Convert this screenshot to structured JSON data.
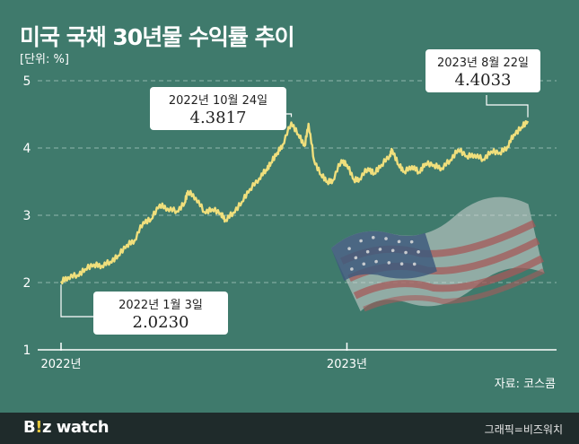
{
  "title": "미국 국채 30년물 수익률 추이",
  "unit_label": "[단위: %]",
  "source": "자료: 코스콤",
  "footer": {
    "brand_b": "B",
    "brand_i": "!",
    "brand_z": "z",
    "brand_rest": " watch",
    "credit": "그래픽=비즈워치"
  },
  "colors": {
    "background": "#3f7a6c",
    "line": "#f0df7c",
    "footer": "#1f2b2b",
    "brand_accent": "#e4c63a",
    "callout_bg": "#ffffff"
  },
  "decoration": {
    "flag_icon": "us-flag-icon"
  },
  "chart_data": {
    "type": "line",
    "ylim": [
      1,
      5
    ],
    "y_ticks": [
      "1",
      "2",
      "3",
      "4",
      "5"
    ],
    "x_ticks": [
      {
        "label": "2022년",
        "date": "2022-01-03"
      },
      {
        "label": "2023년",
        "date": "2023-01-03"
      }
    ],
    "grid": "horizontal dashed",
    "series": [
      {
        "color": "#f0df7c",
        "points": [
          [
            "2022-01-03",
            2.02
          ],
          [
            "2022-01-12",
            2.08
          ],
          [
            "2022-01-24",
            2.11
          ],
          [
            "2022-02-03",
            2.2
          ],
          [
            "2022-02-14",
            2.27
          ],
          [
            "2022-02-24",
            2.25
          ],
          [
            "2022-03-07",
            2.31
          ],
          [
            "2022-03-17",
            2.4
          ],
          [
            "2022-03-28",
            2.56
          ],
          [
            "2022-04-07",
            2.63
          ],
          [
            "2022-04-18",
            2.9
          ],
          [
            "2022-04-28",
            2.94
          ],
          [
            "2022-05-09",
            3.16
          ],
          [
            "2022-05-19",
            3.1
          ],
          [
            "2022-05-31",
            3.06
          ],
          [
            "2022-06-10",
            3.19
          ],
          [
            "2022-06-14",
            3.36
          ],
          [
            "2022-06-24",
            3.26
          ],
          [
            "2022-07-05",
            3.05
          ],
          [
            "2022-07-15",
            3.09
          ],
          [
            "2022-07-26",
            3.03
          ],
          [
            "2022-08-01",
            2.93
          ],
          [
            "2022-08-11",
            3.04
          ],
          [
            "2022-08-22",
            3.2
          ],
          [
            "2022-09-01",
            3.39
          ],
          [
            "2022-09-13",
            3.55
          ],
          [
            "2022-09-22",
            3.68
          ],
          [
            "2022-09-28",
            3.78
          ],
          [
            "2022-10-06",
            3.93
          ],
          [
            "2022-10-13",
            4.05
          ],
          [
            "2022-10-24",
            4.38
          ],
          [
            "2022-11-02",
            4.2
          ],
          [
            "2022-11-10",
            4.03
          ],
          [
            "2022-11-15",
            4.36
          ],
          [
            "2022-11-22",
            3.82
          ],
          [
            "2022-12-01",
            3.6
          ],
          [
            "2022-12-09",
            3.5
          ],
          [
            "2022-12-16",
            3.52
          ],
          [
            "2022-12-27",
            3.82
          ],
          [
            "2023-01-03",
            3.75
          ],
          [
            "2023-01-12",
            3.53
          ],
          [
            "2023-01-19",
            3.54
          ],
          [
            "2023-01-30",
            3.7
          ],
          [
            "2023-02-07",
            3.62
          ],
          [
            "2023-02-16",
            3.75
          ],
          [
            "2023-02-27",
            3.9
          ],
          [
            "2023-03-02",
            3.97
          ],
          [
            "2023-03-10",
            3.75
          ],
          [
            "2023-03-17",
            3.65
          ],
          [
            "2023-03-27",
            3.73
          ],
          [
            "2023-04-05",
            3.64
          ],
          [
            "2023-04-13",
            3.77
          ],
          [
            "2023-04-24",
            3.75
          ],
          [
            "2023-05-04",
            3.7
          ],
          [
            "2023-05-15",
            3.82
          ],
          [
            "2023-05-25",
            3.98
          ],
          [
            "2023-06-05",
            3.88
          ],
          [
            "2023-06-15",
            3.9
          ],
          [
            "2023-06-26",
            3.83
          ],
          [
            "2023-07-06",
            3.95
          ],
          [
            "2023-07-17",
            3.93
          ],
          [
            "2023-07-27",
            4.02
          ],
          [
            "2023-08-04",
            4.2
          ],
          [
            "2023-08-14",
            4.31
          ],
          [
            "2023-08-22",
            4.4
          ]
        ]
      }
    ],
    "annotations": [
      {
        "date_label": "2022년 10월 24일",
        "value": "4.3817",
        "x": "2022-10-24",
        "y": 4.3817
      },
      {
        "date_label": "2023년 8월 22일",
        "value": "4.4033",
        "x": "2023-08-22",
        "y": 4.4033
      },
      {
        "date_label": "2022년 1월 3일",
        "value": "2.0230",
        "x": "2022-01-03",
        "y": 2.023
      }
    ]
  }
}
